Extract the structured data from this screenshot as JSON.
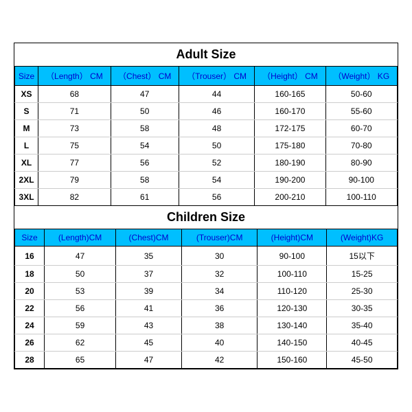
{
  "adult": {
    "title": "Adult Size",
    "header_bg": "#00bfff",
    "header_text_color": "#0000cc",
    "columns": [
      "Size",
      "（Length） CM",
      "（Chest） CM",
      "（Trouser） CM",
      "（Height） CM",
      "（Weight） KG"
    ],
    "rows": [
      [
        "XS",
        "68",
        "47",
        "44",
        "160-165",
        "50-60"
      ],
      [
        "S",
        "71",
        "50",
        "46",
        "160-170",
        "55-60"
      ],
      [
        "M",
        "73",
        "58",
        "48",
        "172-175",
        "60-70"
      ],
      [
        "L",
        "75",
        "54",
        "50",
        "175-180",
        "70-80"
      ],
      [
        "XL",
        "77",
        "56",
        "52",
        "180-190",
        "80-90"
      ],
      [
        "2XL",
        "79",
        "58",
        "54",
        "190-200",
        "90-100"
      ],
      [
        "3XL",
        "82",
        "61",
        "56",
        "200-210",
        "100-110"
      ]
    ]
  },
  "children": {
    "title": "Children Size",
    "header_bg": "#00bfff",
    "header_text_color": "#0000cc",
    "columns": [
      "Size",
      "(Length)CM",
      "(Chest)CM",
      "(Trouser)CM",
      "(Height)CM",
      "(Weight)KG"
    ],
    "rows": [
      [
        "16",
        "47",
        "35",
        "30",
        "90-100",
        "15以下"
      ],
      [
        "18",
        "50",
        "37",
        "32",
        "100-110",
        "15-25"
      ],
      [
        "20",
        "53",
        "39",
        "34",
        "110-120",
        "25-30"
      ],
      [
        "22",
        "56",
        "41",
        "36",
        "120-130",
        "30-35"
      ],
      [
        "24",
        "59",
        "43",
        "38",
        "130-140",
        "35-40"
      ],
      [
        "26",
        "62",
        "45",
        "40",
        "140-150",
        "40-45"
      ],
      [
        "28",
        "65",
        "47",
        "42",
        "150-160",
        "45-50"
      ]
    ]
  }
}
